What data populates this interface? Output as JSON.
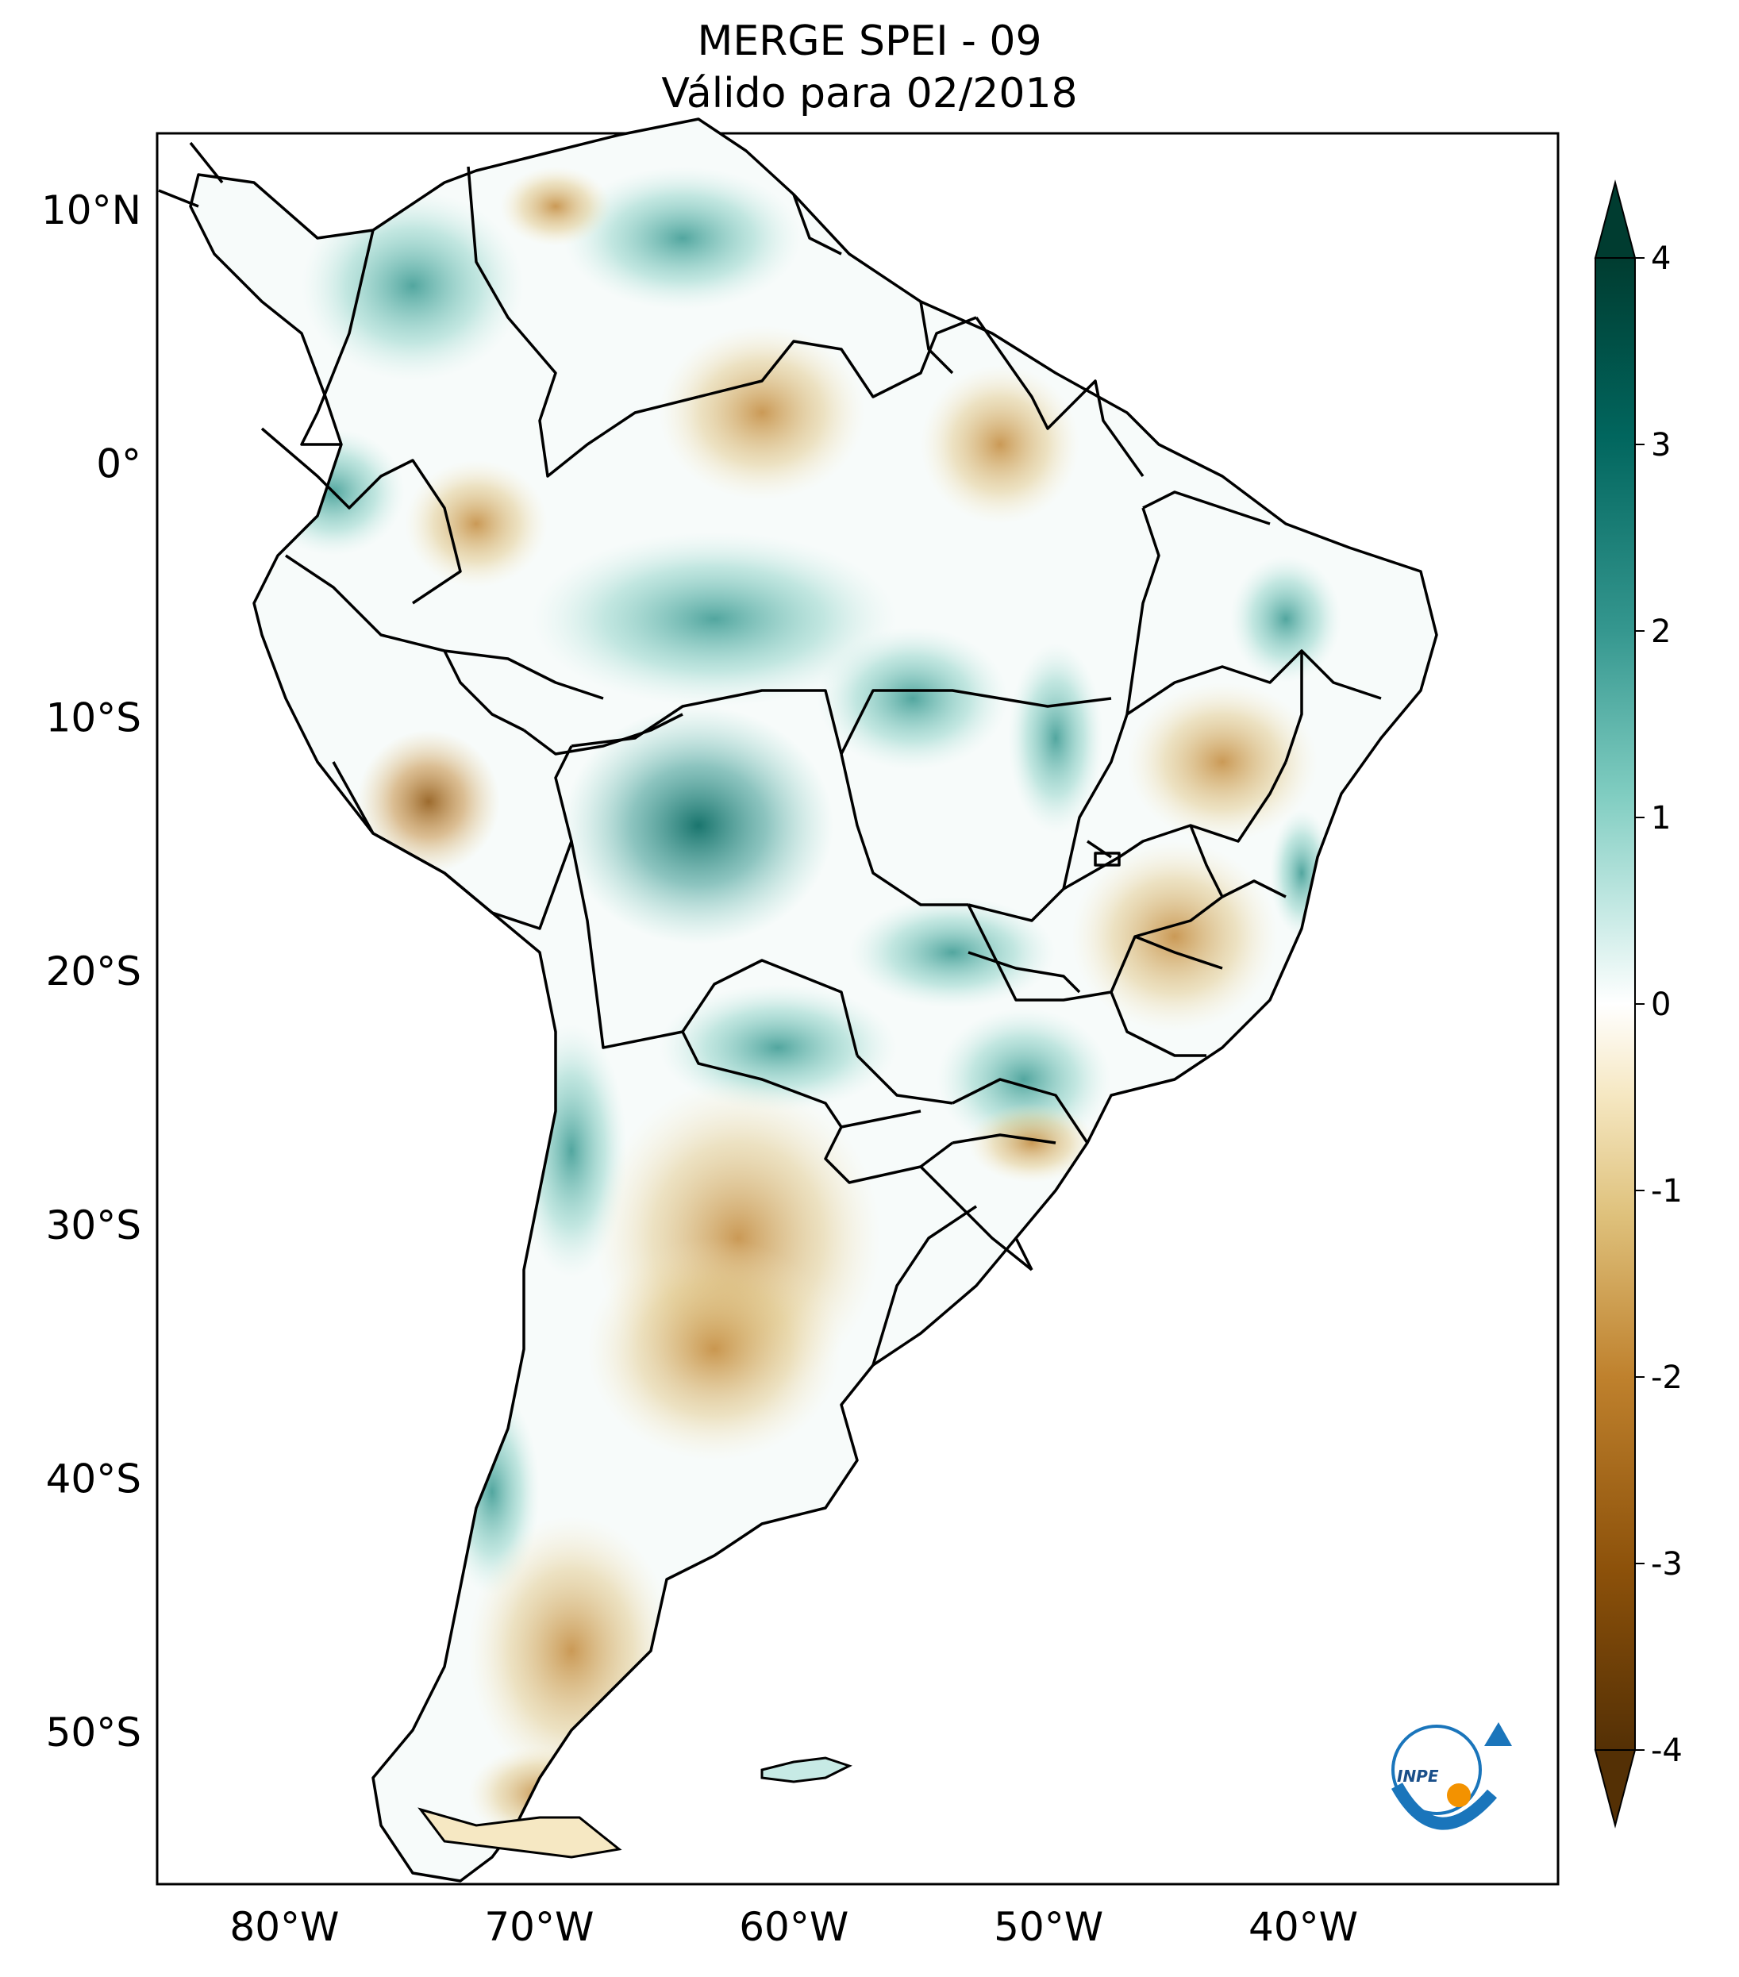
{
  "title": {
    "line1": "MERGE   SPEI - 09",
    "line2": "Válido para 02/2018"
  },
  "map": {
    "lat_labels": [
      {
        "text": "10°N",
        "value": 10
      },
      {
        "text": "0°",
        "value": 0
      },
      {
        "text": "10°S",
        "value": -10
      },
      {
        "text": "20°S",
        "value": -20
      },
      {
        "text": "30°S",
        "value": -30
      },
      {
        "text": "40°S",
        "value": -40
      },
      {
        "text": "50°S",
        "value": -50
      }
    ],
    "lon_labels": [
      {
        "text": "80°W",
        "value": -80
      },
      {
        "text": "70°W",
        "value": -70
      },
      {
        "text": "60°W",
        "value": -60
      },
      {
        "text": "50°W",
        "value": -50
      },
      {
        "text": "40°W",
        "value": -40
      }
    ],
    "extent": {
      "lon": [
        -85,
        -30
      ],
      "lat": [
        -56,
        13
      ]
    }
  },
  "colorbar": {
    "ticks": [
      "4",
      "3",
      "2",
      "1",
      "0",
      "-1",
      "-2",
      "-3",
      "-4"
    ],
    "range": [
      -4,
      4
    ],
    "colors": [
      "#543005",
      "#8c510a",
      "#bf812d",
      "#dfc27d",
      "#f6e8c3",
      "#ffffff",
      "#c7eae5",
      "#80cdc1",
      "#35978f",
      "#01665e",
      "#003c30"
    ]
  },
  "logo": {
    "text": "INPE"
  }
}
